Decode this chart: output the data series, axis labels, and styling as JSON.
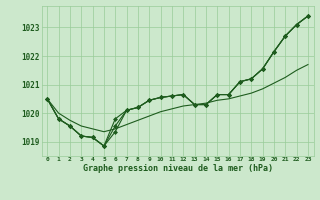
{
  "x": [
    0,
    1,
    2,
    3,
    4,
    5,
    6,
    7,
    8,
    9,
    10,
    11,
    12,
    13,
    14,
    15,
    16,
    17,
    18,
    19,
    20,
    21,
    22,
    23
  ],
  "y_main": [
    1020.5,
    1019.8,
    1019.55,
    1019.2,
    1019.15,
    1018.85,
    1019.35,
    1020.1,
    1020.2,
    1020.45,
    1020.55,
    1020.6,
    1020.65,
    1020.3,
    1020.3,
    1020.65,
    1020.65,
    1021.1,
    1021.2,
    1021.55,
    1022.15,
    1022.7,
    1023.1,
    1023.4
  ],
  "y_smooth": [
    1020.5,
    1020.0,
    1019.75,
    1019.55,
    1019.45,
    1019.35,
    1019.45,
    1019.6,
    1019.75,
    1019.9,
    1020.05,
    1020.15,
    1020.25,
    1020.3,
    1020.35,
    1020.45,
    1020.5,
    1020.6,
    1020.7,
    1020.85,
    1021.05,
    1021.25,
    1021.5,
    1021.7
  ],
  "y_line3": [
    1020.5,
    1019.8,
    1019.55,
    1019.2,
    1019.15,
    1018.85,
    1019.35,
    1020.1,
    1020.2,
    1020.45,
    1020.55,
    1020.6,
    1020.65,
    1020.3,
    1020.3,
    1020.65,
    1020.65,
    1021.1,
    1021.2,
    1021.55,
    1022.15,
    1022.7,
    1023.1,
    1023.4
  ],
  "y_line4": [
    1020.5,
    1019.8,
    1019.55,
    1019.2,
    1019.15,
    1018.85,
    1019.6,
    1020.1,
    1020.2,
    1020.45,
    1020.55,
    1020.6,
    1020.65,
    1020.3,
    1020.3,
    1020.65,
    1020.65,
    1021.1,
    1021.2,
    1021.55,
    1022.15,
    1022.7,
    1023.1,
    1023.4
  ],
  "background_color": "#cce8cc",
  "grid_color": "#99cc99",
  "line_color": "#1e5c1e",
  "ylabel_ticks": [
    1019,
    1020,
    1021,
    1022,
    1023
  ],
  "xlabel_label": "Graphe pression niveau de la mer (hPa)",
  "ylim": [
    1018.5,
    1023.75
  ],
  "xlim": [
    -0.5,
    23.5
  ],
  "figwidth": 3.2,
  "figheight": 2.0,
  "dpi": 100
}
